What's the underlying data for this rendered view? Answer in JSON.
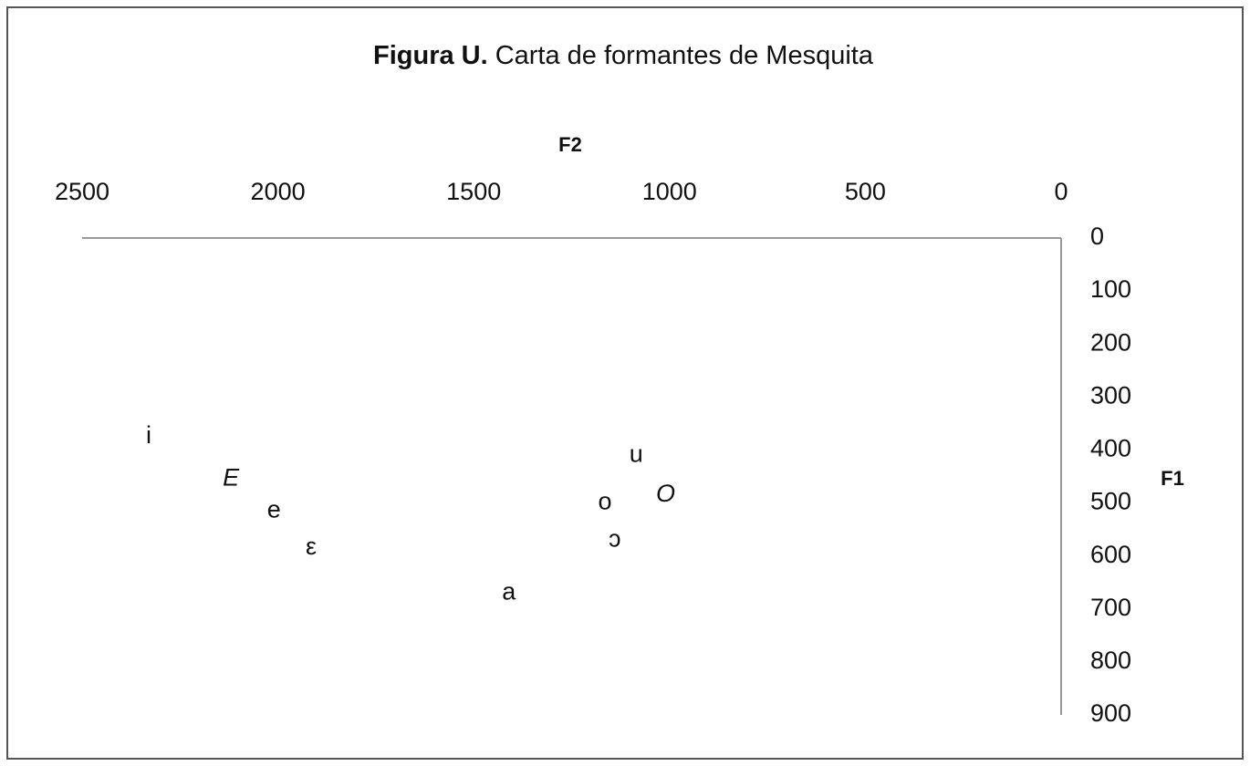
{
  "chart_data": {
    "type": "scatter",
    "title_prefix": "Figura U.",
    "title": "Carta de formantes de Mesquita",
    "x_label": "F2",
    "y_label": "F1",
    "x": [
      2330,
      2120,
      2010,
      1915,
      1410,
      1165,
      1140,
      1085,
      1010
    ],
    "values": [
      375,
      455,
      515,
      585,
      670,
      500,
      570,
      410,
      485
    ],
    "point_labels": [
      "i",
      "E",
      "e",
      "ε",
      "a",
      "o",
      "ɔ",
      "u",
      "O"
    ],
    "color": "#111111",
    "xlim": [
      2500,
      0
    ],
    "xticks": [
      2500,
      2000,
      1500,
      1000,
      500,
      0
    ],
    "ylim": [
      900,
      0
    ],
    "yticks": [
      0,
      100,
      200,
      300,
      400,
      500,
      600,
      700,
      800,
      900
    ],
    "grid": false
  }
}
